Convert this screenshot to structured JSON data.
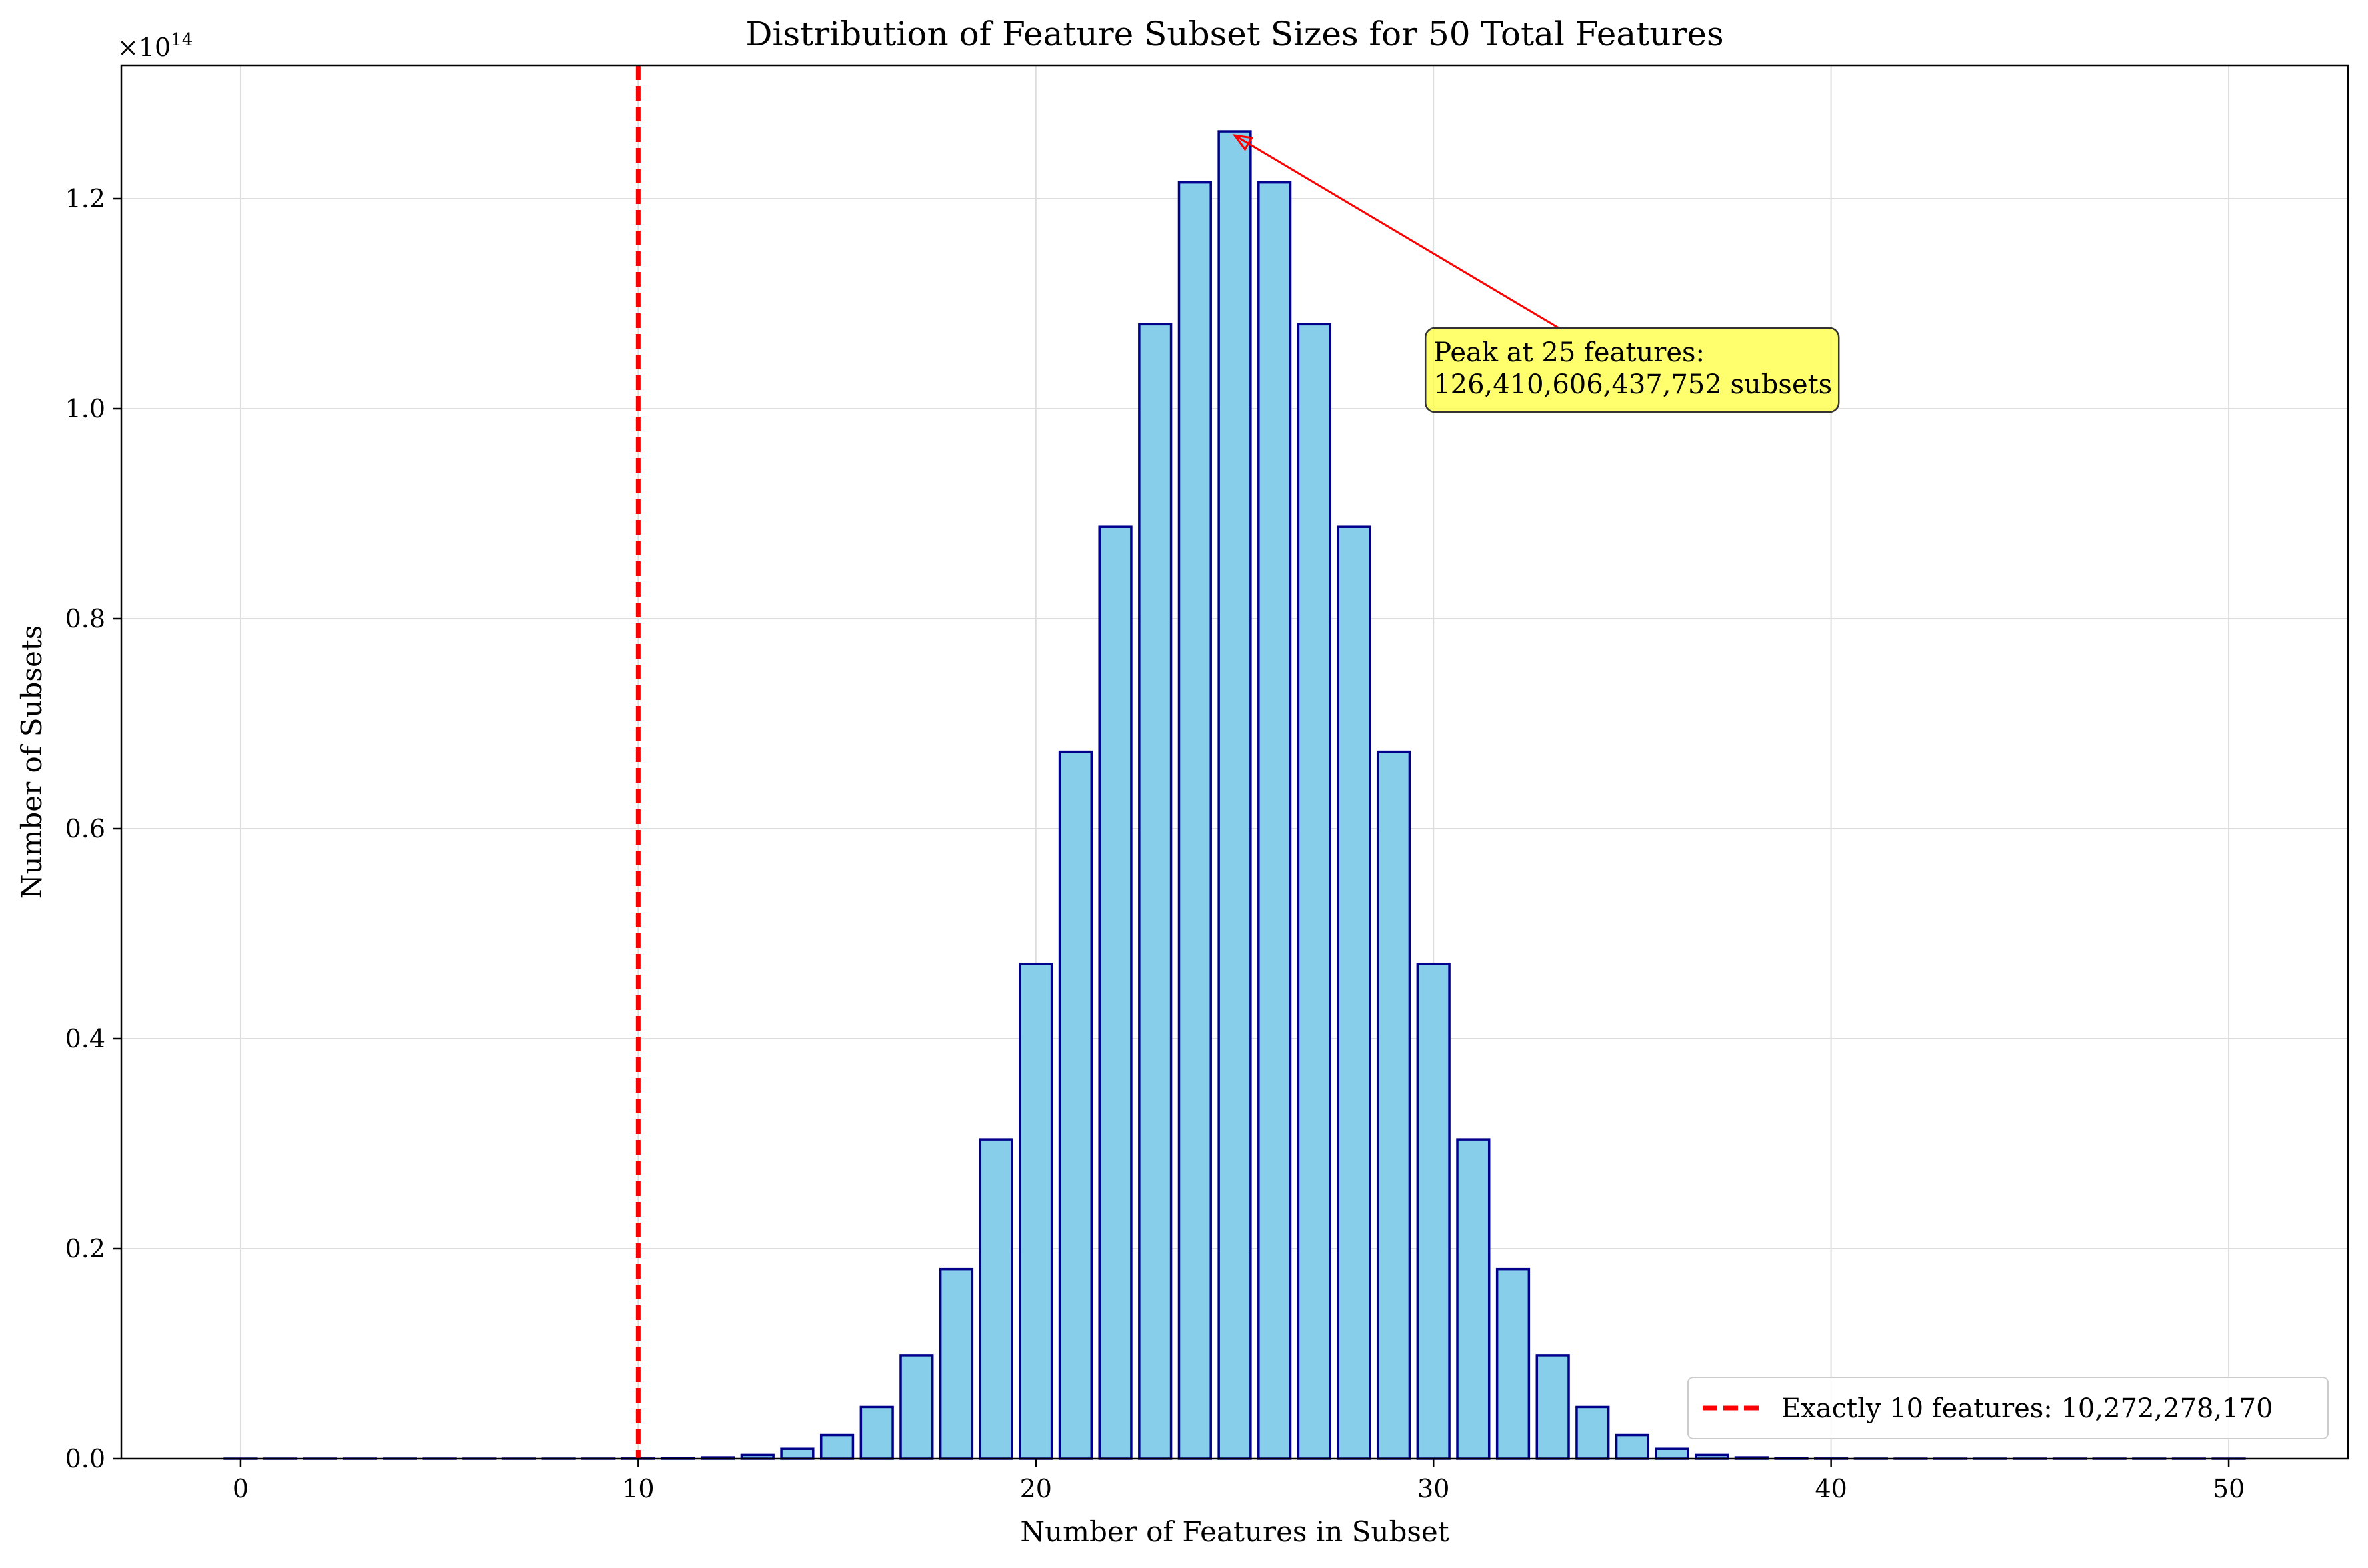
{
  "chart_data": {
    "type": "bar",
    "title": "Distribution of Feature Subset Sizes for 50 Total Features",
    "xlabel": "Number of Features in Subset",
    "ylabel": "Number of Subsets",
    "y_scale_label": "×10",
    "y_scale_exponent": "14",
    "xlim": [
      -3,
      53
    ],
    "ylim": [
      0,
      132700000000000.0
    ],
    "x_ticks": [
      0,
      10,
      20,
      30,
      40,
      50
    ],
    "x_tick_labels": [
      "0",
      "10",
      "20",
      "30",
      "40",
      "50"
    ],
    "y_ticks": [
      0,
      20000000000000.0,
      40000000000000.0,
      60000000000000.0,
      80000000000000.0,
      100000000000000.0,
      120000000000000.0
    ],
    "y_tick_labels": [
      "0.0",
      "0.2",
      "0.4",
      "0.6",
      "0.8",
      "1.0",
      "1.2"
    ],
    "grid": true,
    "x": [
      0,
      1,
      2,
      3,
      4,
      5,
      6,
      7,
      8,
      9,
      10,
      11,
      12,
      13,
      14,
      15,
      16,
      17,
      18,
      19,
      20,
      21,
      22,
      23,
      24,
      25,
      26,
      27,
      28,
      29,
      30,
      31,
      32,
      33,
      34,
      35,
      36,
      37,
      38,
      39,
      40,
      41,
      42,
      43,
      44,
      45,
      46,
      47,
      48,
      49,
      50
    ],
    "values": [
      1,
      50,
      1225,
      19600,
      230300,
      2118760,
      15890700,
      99884400,
      536878650,
      2505433700,
      10272278170,
      37353738800,
      121399651100,
      354860518600,
      937845656300,
      2250829575120,
      4923689695575,
      9847379391150,
      18053528883775,
      30405943383200,
      47129212243960,
      67327446062800,
      88749815264600,
      108043253365600,
      121548660036300,
      126410606437752,
      121548660036300,
      108043253365600,
      88749815264600,
      67327446062800,
      47129212243960,
      30405943383200,
      18053528883775,
      9847379391150,
      4923689695575,
      2250829575120,
      937845656300,
      354860518600,
      121399651100,
      37353738800,
      10272278170,
      2505433700,
      536878650,
      99884400,
      15890700,
      2118760,
      230300,
      19600,
      1225,
      50,
      1
    ],
    "bar_color": "#87ceeb",
    "bar_edge_color": "#00008b",
    "reference_line": {
      "x": 10,
      "color": "#ff0000",
      "style": "dashed"
    },
    "legend": {
      "position": "lower-right",
      "entries": [
        {
          "label": "Exactly 10 features: 10,272,278,170",
          "color": "#ff0000",
          "style": "dashed"
        }
      ]
    },
    "annotation": {
      "line1": "Peak at 25 features:",
      "line2": "126,410,606,437,752 subsets",
      "target_x": 25,
      "target_y": 126410606437752,
      "text_x": 30,
      "text_y": 104000000000000.0,
      "box_color": "#ffff44",
      "arrow_color": "#ff0000"
    }
  }
}
